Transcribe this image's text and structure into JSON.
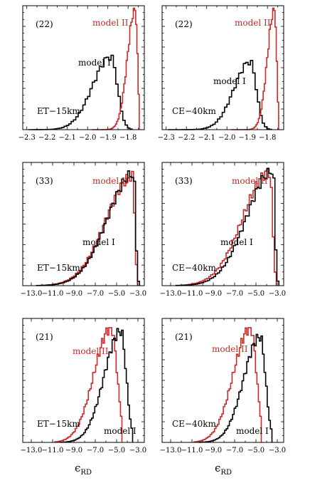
{
  "xlabel": {
    "symbol": "ϵ",
    "sub": "RD"
  },
  "colors": {
    "model_I": "#000000",
    "model_II": "#cc2929"
  },
  "chart_data": [
    {
      "type": "step",
      "id": "p22-ET",
      "component_label": "(22)",
      "detector_label": "ET−15km",
      "series_labels": [
        {
          "text": "model II",
          "color": "#cc2929"
        },
        {
          "text": "model I",
          "color": "#000000"
        }
      ],
      "xlim": [
        -2.32,
        -1.72
      ],
      "xticks": [
        -2.3,
        -2.2,
        -2.1,
        -2.0,
        -1.9,
        -1.8
      ],
      "xtick_labels": [
        "−2.3",
        "−2.2",
        "−2.1",
        "−2.0",
        "−1.9",
        "−1.8"
      ],
      "ylim": [
        0,
        1.02
      ],
      "series": [
        {
          "name": "model I",
          "color": "#000000",
          "shape": {
            "type": "skew",
            "mu": -1.885,
            "sl": 0.09,
            "sr": 0.032,
            "peak": 0.6,
            "bins": 44,
            "xmin": -2.29,
            "xmax": -1.78
          }
        },
        {
          "name": "model II",
          "color": "#cc2929",
          "shape": {
            "type": "skew",
            "mu": -1.765,
            "sl": 0.038,
            "sr": 0.011,
            "peak": 1.0,
            "bins": 40,
            "xmin": -1.98,
            "xmax": -1.745
          }
        }
      ]
    },
    {
      "type": "step",
      "id": "p22-CE",
      "component_label": "(22)",
      "detector_label": "CE−40km",
      "series_labels": [
        {
          "text": "model II",
          "color": "#cc2929"
        },
        {
          "text": "model I",
          "color": "#000000"
        }
      ],
      "xlim": [
        -2.32,
        -1.72
      ],
      "xticks": [
        -2.3,
        -2.2,
        -2.1,
        -2.0,
        -1.9,
        -1.8
      ],
      "xtick_labels": [
        "−2.3",
        "−2.2",
        "−2.1",
        "−2.0",
        "−1.9",
        "−1.8"
      ],
      "ylim": [
        0,
        1.02
      ],
      "series": [
        {
          "name": "model I",
          "color": "#000000",
          "shape": {
            "type": "skew",
            "mu": -1.885,
            "sl": 0.08,
            "sr": 0.03,
            "peak": 0.56,
            "bins": 44,
            "xmin": -2.29,
            "xmax": -1.78
          }
        },
        {
          "name": "model II",
          "color": "#cc2929",
          "shape": {
            "type": "skew",
            "mu": -1.765,
            "sl": 0.035,
            "sr": 0.01,
            "peak": 1.0,
            "bins": 40,
            "xmin": -1.98,
            "xmax": -1.745
          }
        }
      ]
    },
    {
      "type": "step",
      "id": "p33-ET",
      "component_label": "(33)",
      "detector_label": "ET−15km",
      "series_labels": [
        {
          "text": "model II",
          "color": "#cc2929"
        },
        {
          "text": "model I",
          "color": "#000000"
        }
      ],
      "xlim": [
        -13.8,
        -2.4
      ],
      "xticks": [
        -13,
        -11,
        -9,
        -7,
        -5,
        -3
      ],
      "xtick_labels": [
        "−13.0",
        "−11.0",
        "−9.0",
        "−7.0",
        "−5.0",
        "−3.0"
      ],
      "ylim": [
        0,
        1.05
      ],
      "series": [
        {
          "name": "model II",
          "color": "#cc2929",
          "shape": {
            "type": "skew",
            "mu": -3.5,
            "sl": 2.5,
            "sr": 0.2,
            "peak": 0.93,
            "bins": 52,
            "xmin": -12.5,
            "xmax": -3.05
          }
        },
        {
          "name": "model I",
          "color": "#000000",
          "shape": {
            "type": "skew",
            "mu": -3.4,
            "sl": 2.45,
            "sr": 0.18,
            "peak": 0.95,
            "bins": 52,
            "xmin": -12.5,
            "xmax": -2.85
          }
        }
      ]
    },
    {
      "type": "step",
      "id": "p33-CE",
      "component_label": "(33)",
      "detector_label": "CE−40km",
      "series_labels": [
        {
          "text": "model II",
          "color": "#cc2929"
        },
        {
          "text": "model I",
          "color": "#000000"
        }
      ],
      "xlim": [
        -13.8,
        -2.4
      ],
      "xticks": [
        -13,
        -11,
        -9,
        -7,
        -5,
        -3
      ],
      "xtick_labels": [
        "−13.0",
        "−11.0",
        "−9.0",
        "−7.0",
        "−5.0",
        "−3.0"
      ],
      "ylim": [
        0,
        1.05
      ],
      "series": [
        {
          "name": "model II",
          "color": "#cc2929",
          "shape": {
            "type": "skew",
            "mu": -3.7,
            "sl": 2.5,
            "sr": 0.25,
            "peak": 0.97,
            "bins": 52,
            "xmin": -12.5,
            "xmax": -3.1
          }
        },
        {
          "name": "model I",
          "color": "#000000",
          "shape": {
            "type": "skew",
            "mu": -3.4,
            "sl": 2.45,
            "sr": 0.18,
            "peak": 0.98,
            "bins": 52,
            "xmin": -12.5,
            "xmax": -2.85
          }
        }
      ]
    },
    {
      "type": "step",
      "id": "p21-ET",
      "component_label": "(21)",
      "detector_label": "ET−15km",
      "series_labels": [
        {
          "text": "model II",
          "color": "#cc2929"
        },
        {
          "text": "model I",
          "color": "#000000"
        }
      ],
      "xlim": [
        -13.8,
        -2.4
      ],
      "xticks": [
        -13,
        -11,
        -9,
        -7,
        -5,
        -3
      ],
      "xtick_labels": [
        "−13.0",
        "−11.0",
        "−9.0",
        "−7.0",
        "−5.0",
        "−3.0"
      ],
      "ylim": [
        0,
        1.08
      ],
      "series": [
        {
          "name": "model II",
          "color": "#cc2929",
          "shape": {
            "type": "skew",
            "mu": -5.5,
            "sl": 1.6,
            "sr": 0.55,
            "peak": 1.0,
            "bins": 46,
            "xmin": -10.8,
            "xmax": -4.5
          }
        },
        {
          "name": "model I",
          "color": "#000000",
          "shape": {
            "type": "skew",
            "mu": -4.6,
            "sl": 1.55,
            "sr": 0.5,
            "peak": 0.97,
            "bins": 46,
            "xmin": -10.3,
            "xmax": -3.5
          }
        }
      ]
    },
    {
      "type": "step",
      "id": "p21-CE",
      "component_label": "(21)",
      "detector_label": "CE−40km",
      "series_labels": [
        {
          "text": "model II",
          "color": "#cc2929"
        },
        {
          "text": "model I",
          "color": "#000000"
        }
      ],
      "xlim": [
        -13.8,
        -2.4
      ],
      "xticks": [
        -13,
        -11,
        -9,
        -7,
        -5,
        -3
      ],
      "xtick_labels": [
        "−13.0",
        "−11.0",
        "−9.0",
        "−7.0",
        "−5.0",
        "−3.0"
      ],
      "ylim": [
        0,
        1.08
      ],
      "series": [
        {
          "name": "model II",
          "color": "#cc2929",
          "shape": {
            "type": "skew",
            "mu": -5.5,
            "sl": 1.6,
            "sr": 0.55,
            "peak": 1.0,
            "bins": 46,
            "xmin": -10.8,
            "xmax": -4.5
          }
        },
        {
          "name": "model I",
          "color": "#000000",
          "shape": {
            "type": "skew",
            "mu": -4.6,
            "sl": 1.55,
            "sr": 0.5,
            "peak": 0.92,
            "bins": 46,
            "xmin": -10.3,
            "xmax": -3.5
          }
        }
      ]
    }
  ]
}
